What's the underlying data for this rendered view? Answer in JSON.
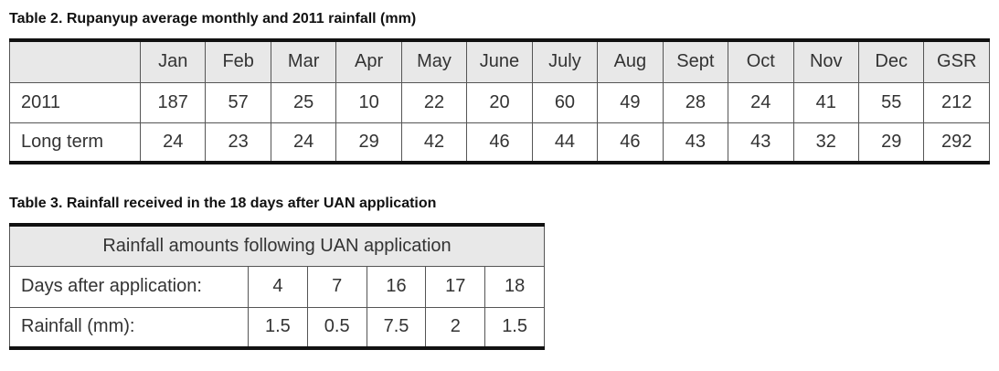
{
  "table2": {
    "title": "Table 2.  Rupanyup average monthly and 2011 rainfall (mm)",
    "columns": [
      "Jan",
      "Feb",
      "Mar",
      "Apr",
      "May",
      "June",
      "July",
      "Aug",
      "Sept",
      "Oct",
      "Nov",
      "Dec",
      "GSR"
    ],
    "rows": [
      {
        "label": "2011",
        "values": [
          187,
          57,
          25,
          10,
          22,
          20,
          60,
          49,
          28,
          24,
          41,
          55,
          212
        ]
      },
      {
        "label": "Long term",
        "values": [
          24,
          23,
          24,
          29,
          42,
          46,
          44,
          46,
          43,
          43,
          32,
          29,
          292
        ]
      }
    ]
  },
  "table3": {
    "title": "Table 3. Rainfall received in the 18 days after UAN application",
    "header": "Rainfall amounts following UAN application",
    "rows": [
      {
        "label": "Days after application:",
        "values": [
          4,
          7,
          16,
          17,
          18
        ]
      },
      {
        "label": "Rainfall (mm):",
        "values": [
          1.5,
          0.5,
          7.5,
          2,
          1.5
        ]
      }
    ]
  }
}
